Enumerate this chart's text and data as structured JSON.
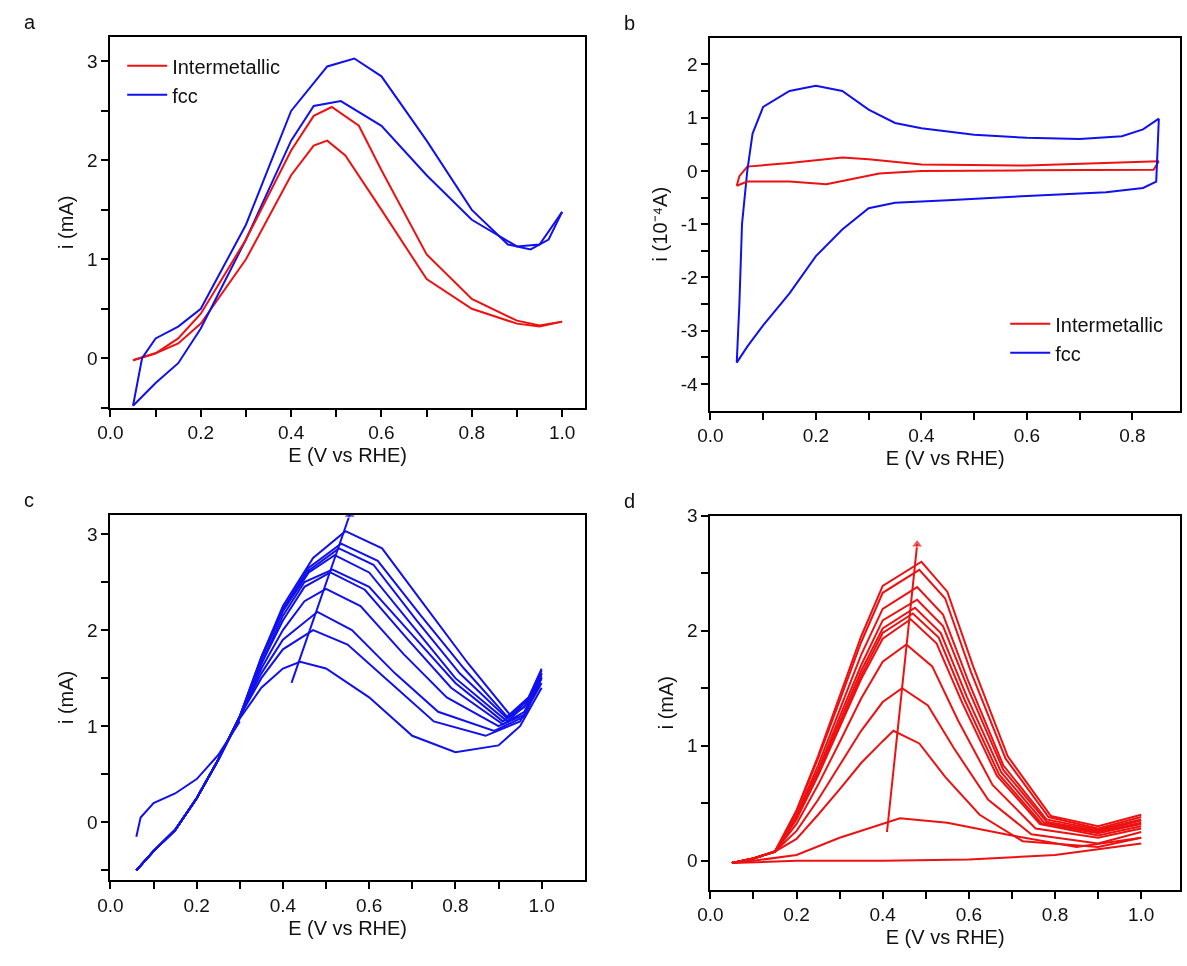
{
  "chart_data": [
    {
      "type": "line",
      "annotations": [
        "a"
      ],
      "xlabel": "E (V vs RHE)",
      "ylabel": "i (mA)",
      "legend": "top left",
      "xlim": [
        0,
        1.05
      ],
      "xticks": [
        {
          "value": 0,
          "label": "0.0"
        },
        {
          "value": 0.1,
          "label": null
        },
        0.2,
        {
          "value": 0.3,
          "label": null
        },
        0.4,
        {
          "value": 0.5,
          "label": null
        },
        0.6,
        {
          "value": 0.7,
          "label": null
        },
        0.8,
        {
          "value": 0.9,
          "label": null
        },
        {
          "value": 1,
          "label": "1.0"
        }
      ],
      "ylim": [
        -0.5,
        3.25
      ],
      "yticks": [
        {
          "value": -0.5,
          "label": null
        },
        0,
        {
          "value": 0.5,
          "label": null
        },
        1,
        {
          "value": 1.5,
          "label": null
        },
        2,
        {
          "value": 2.5,
          "label": null
        },
        3
      ],
      "series": [
        {
          "name": "Intermetallic",
          "color": "#ee1111",
          "x": [
            0.05,
            0.1,
            0.15,
            0.2,
            0.3,
            0.4,
            0.45,
            0.48,
            0.52,
            0.6,
            0.7,
            0.8,
            0.9,
            0.95,
            1.0
          ],
          "values": [
            -0.02,
            0.05,
            0.15,
            0.35,
            1.0,
            1.85,
            2.15,
            2.2,
            2.05,
            1.5,
            0.8,
            0.5,
            0.35,
            0.32,
            0.37
          ]
        },
        {
          "name": "fcc",
          "color": "#1111ee",
          "x": [
            0.05,
            0.1,
            0.15,
            0.2,
            0.3,
            0.4,
            0.45,
            0.51,
            0.6,
            0.7,
            0.8,
            0.9,
            0.95,
            1.0
          ],
          "values": [
            -0.48,
            -0.25,
            -0.05,
            0.3,
            1.2,
            2.2,
            2.55,
            2.6,
            2.35,
            1.85,
            1.4,
            1.13,
            1.15,
            1.48
          ]
        },
        {
          "color": "#ee1111",
          "x": [
            0.05,
            0.1,
            0.15,
            0.2,
            0.3,
            0.4,
            0.45,
            0.49,
            0.55,
            0.6,
            0.7,
            0.8,
            0.9,
            0.95,
            1.0
          ],
          "values": [
            -0.02,
            0.05,
            0.2,
            0.45,
            1.2,
            2.1,
            2.45,
            2.54,
            2.35,
            1.9,
            1.05,
            0.6,
            0.38,
            0.33,
            0.37
          ]
        },
        {
          "color": "#1111ee",
          "x": [
            0.05,
            0.07,
            0.1,
            0.15,
            0.2,
            0.3,
            0.4,
            0.48,
            0.54,
            0.6,
            0.7,
            0.8,
            0.88,
            0.93,
            0.97,
            1.0
          ],
          "values": [
            -0.48,
            0.0,
            0.2,
            0.32,
            0.5,
            1.35,
            2.5,
            2.95,
            3.03,
            2.85,
            2.2,
            1.5,
            1.15,
            1.1,
            1.2,
            1.48
          ]
        }
      ]
    },
    {
      "type": "line",
      "annotations": [
        "b"
      ],
      "xlabel": "E (V vs RHE)",
      "ylabel": "i (10⁻⁴A)",
      "legend": "bottom right",
      "xlim": [
        0,
        0.89
      ],
      "xticks": [
        {
          "value": 0,
          "label": "0.0"
        },
        {
          "value": 0.1,
          "label": null
        },
        0.2,
        {
          "value": 0.3,
          "label": null
        },
        0.4,
        {
          "value": 0.5,
          "label": null
        },
        0.6,
        {
          "value": 0.7,
          "label": null
        },
        0.8
      ],
      "ylim": [
        -4.5,
        2.5
      ],
      "yticks": [
        -4,
        {
          "value": -3.5,
          "label": null
        },
        -3,
        {
          "value": -2.5,
          "label": null
        },
        -2,
        {
          "value": -1.5,
          "label": null
        },
        -1,
        {
          "value": -0.5,
          "label": null
        },
        0,
        {
          "value": 0.5,
          "label": null
        },
        1,
        {
          "value": 1.5,
          "label": null
        },
        2
      ],
      "series": [
        {
          "name": "Intermetallic",
          "color": "#ee1111",
          "x": [
            0.05,
            0.055,
            0.07,
            0.15,
            0.25,
            0.3,
            0.4,
            0.6,
            0.85
          ],
          "values": [
            -0.28,
            -0.1,
            0.08,
            0.15,
            0.25,
            0.22,
            0.12,
            0.1,
            0.18
          ]
        },
        {
          "name": "fcc",
          "color": "#1111ee",
          "x": [
            0.05,
            0.055,
            0.06,
            0.07,
            0.08,
            0.1,
            0.15,
            0.2,
            0.25,
            0.3,
            0.35,
            0.4,
            0.5,
            0.6,
            0.7,
            0.78,
            0.82,
            0.85
          ],
          "values": [
            -3.6,
            -2.5,
            -1.0,
            0.0,
            0.7,
            1.2,
            1.5,
            1.6,
            1.5,
            1.15,
            0.9,
            0.8,
            0.68,
            0.62,
            0.6,
            0.65,
            0.78,
            0.98
          ]
        },
        {
          "color": "#ee1111",
          "x": [
            0.05,
            0.07,
            0.15,
            0.22,
            0.32,
            0.4,
            0.6,
            0.84,
            0.85
          ],
          "values": [
            -0.28,
            -0.2,
            -0.2,
            -0.25,
            -0.05,
            0.0,
            0.01,
            0.02,
            0.18
          ]
        },
        {
          "color": "#1111ee",
          "x": [
            0.05,
            0.07,
            0.1,
            0.15,
            0.2,
            0.25,
            0.3,
            0.35,
            0.45,
            0.6,
            0.75,
            0.82,
            0.845,
            0.85
          ],
          "values": [
            -3.6,
            -3.3,
            -2.9,
            -2.3,
            -1.6,
            -1.1,
            -0.7,
            -0.6,
            -0.55,
            -0.47,
            -0.4,
            -0.32,
            -0.2,
            0.98
          ]
        }
      ]
    },
    {
      "type": "line",
      "annotations": [
        "c"
      ],
      "xlabel": "E (V vs RHE)",
      "ylabel": "i (mA)",
      "xlim": [
        0,
        1.1
      ],
      "xticks": [
        {
          "value": 0,
          "label": "0.0"
        },
        {
          "value": 0.1,
          "label": null
        },
        0.2,
        {
          "value": 0.3,
          "label": null
        },
        0.4,
        {
          "value": 0.5,
          "label": null
        },
        0.6,
        {
          "value": 0.7,
          "label": null
        },
        0.8,
        {
          "value": 0.9,
          "label": null
        },
        {
          "value": 1,
          "label": "1.0"
        }
      ],
      "ylim": [
        -0.6,
        3.2
      ],
      "yticks": [
        {
          "value": -0.5,
          "label": null
        },
        0,
        {
          "value": 0.5,
          "label": null
        },
        1,
        {
          "value": 1.5,
          "label": null
        },
        2,
        {
          "value": 2.5,
          "label": null
        },
        3
      ],
      "series": [
        {
          "color": "#1111ee",
          "x": [
            0.06,
            0.1,
            0.15,
            0.2,
            0.25,
            0.3,
            0.35,
            0.4,
            0.44,
            0.5,
            0.6,
            0.7,
            0.8,
            0.9,
            0.95,
            1.0
          ],
          "values": [
            -0.5,
            -0.3,
            -0.08,
            0.25,
            0.65,
            1.08,
            1.4,
            1.6,
            1.67,
            1.6,
            1.3,
            0.9,
            0.73,
            0.8,
            1.0,
            1.4
          ]
        },
        {
          "color": "#1111ee",
          "x": [
            0.06,
            0.1,
            0.15,
            0.2,
            0.25,
            0.3,
            0.35,
            0.4,
            0.47,
            0.55,
            0.65,
            0.75,
            0.87,
            0.95,
            1.0
          ],
          "values": [
            -0.5,
            -0.3,
            -0.08,
            0.25,
            0.65,
            1.1,
            1.5,
            1.8,
            2.0,
            1.85,
            1.45,
            1.05,
            0.9,
            1.05,
            1.45
          ]
        },
        {
          "color": "#1111ee",
          "x": [
            0.06,
            0.1,
            0.15,
            0.2,
            0.25,
            0.3,
            0.35,
            0.4,
            0.48,
            0.56,
            0.66,
            0.76,
            0.89,
            0.96,
            1.0
          ],
          "values": [
            -0.5,
            -0.3,
            -0.08,
            0.25,
            0.65,
            1.1,
            1.55,
            1.9,
            2.19,
            2.0,
            1.55,
            1.15,
            0.95,
            1.1,
            1.5
          ]
        },
        {
          "color": "#1111ee",
          "x": [
            0.06,
            0.1,
            0.15,
            0.2,
            0.25,
            0.3,
            0.35,
            0.4,
            0.45,
            0.5,
            0.58,
            0.68,
            0.78,
            0.9,
            0.96,
            1.0
          ],
          "values": [
            -0.5,
            -0.3,
            -0.08,
            0.25,
            0.65,
            1.1,
            1.6,
            2.0,
            2.3,
            2.43,
            2.25,
            1.75,
            1.3,
            1.0,
            1.12,
            1.5
          ]
        },
        {
          "color": "#1111ee",
          "x": [
            0.06,
            0.1,
            0.15,
            0.2,
            0.25,
            0.3,
            0.35,
            0.4,
            0.45,
            0.51,
            0.59,
            0.69,
            0.79,
            0.91,
            0.96,
            1.0
          ],
          "values": [
            -0.5,
            -0.3,
            -0.08,
            0.25,
            0.65,
            1.1,
            1.65,
            2.1,
            2.45,
            2.6,
            2.42,
            1.9,
            1.4,
            1.02,
            1.15,
            1.52
          ]
        },
        {
          "color": "#1111ee",
          "x": [
            0.06,
            0.1,
            0.15,
            0.2,
            0.25,
            0.3,
            0.35,
            0.4,
            0.45,
            0.515,
            0.6,
            0.7,
            0.8,
            0.91,
            0.96,
            1.0
          ],
          "values": [
            -0.5,
            -0.3,
            -0.08,
            0.25,
            0.65,
            1.1,
            1.65,
            2.15,
            2.5,
            2.63,
            2.45,
            1.95,
            1.45,
            1.05,
            1.2,
            1.55
          ]
        },
        {
          "color": "#1111ee",
          "x": [
            0.06,
            0.1,
            0.15,
            0.2,
            0.25,
            0.3,
            0.35,
            0.4,
            0.46,
            0.52,
            0.6,
            0.7,
            0.8,
            0.92,
            0.97,
            1.0
          ],
          "values": [
            -0.5,
            -0.3,
            -0.08,
            0.25,
            0.65,
            1.1,
            1.7,
            2.2,
            2.6,
            2.78,
            2.6,
            2.05,
            1.5,
            1.05,
            1.25,
            1.55
          ]
        },
        {
          "color": "#1111ee",
          "x": [
            0.06,
            0.1,
            0.15,
            0.2,
            0.25,
            0.3,
            0.35,
            0.4,
            0.46,
            0.53,
            0.61,
            0.71,
            0.81,
            0.92,
            0.97,
            1.0
          ],
          "values": [
            -0.5,
            -0.3,
            -0.08,
            0.25,
            0.65,
            1.1,
            1.7,
            2.2,
            2.62,
            2.85,
            2.68,
            2.1,
            1.55,
            1.08,
            1.28,
            1.55
          ]
        },
        {
          "color": "#1111ee",
          "x": [
            0.06,
            0.1,
            0.15,
            0.2,
            0.25,
            0.3,
            0.35,
            0.4,
            0.46,
            0.535,
            0.62,
            0.72,
            0.82,
            0.92,
            0.97,
            1.0
          ],
          "values": [
            -0.5,
            -0.3,
            -0.08,
            0.25,
            0.65,
            1.1,
            1.72,
            2.22,
            2.65,
            2.9,
            2.72,
            2.15,
            1.6,
            1.1,
            1.3,
            1.58
          ]
        },
        {
          "color": "#1111ee",
          "x": [
            0.06,
            0.1,
            0.15,
            0.2,
            0.25,
            0.3,
            0.35,
            0.4,
            0.47,
            0.545,
            0.63,
            0.73,
            0.83,
            0.93,
            0.97,
            1.0
          ],
          "values": [
            -0.5,
            -0.3,
            -0.08,
            0.25,
            0.65,
            1.1,
            1.72,
            2.25,
            2.75,
            3.03,
            2.85,
            2.25,
            1.65,
            1.1,
            1.3,
            1.6
          ]
        },
        {
          "color": "#1111ee",
          "x": [
            0.06,
            0.07,
            0.1,
            0.15,
            0.2,
            0.25,
            0.3
          ],
          "values": [
            -0.15,
            0.05,
            0.2,
            0.3,
            0.45,
            0.7,
            1.05
          ]
        },
        {
          "color": "#1111ee",
          "marker": "triangle",
          "x": [
            0.42,
            0.555
          ],
          "values": [
            1.45,
            3.2
          ]
        }
      ]
    },
    {
      "type": "line",
      "annotations": [
        "d"
      ],
      "xlabel": "E (V vs RHE)",
      "ylabel": "i (mA)",
      "xlim": [
        0,
        1.09
      ],
      "xticks": [
        {
          "value": 0,
          "label": "0.0"
        },
        {
          "value": 0.1,
          "label": null
        },
        0.2,
        {
          "value": 0.3,
          "label": null
        },
        0.4,
        {
          "value": 0.5,
          "label": null
        },
        0.6,
        {
          "value": 0.7,
          "label": null
        },
        0.8,
        {
          "value": 0.9,
          "label": null
        },
        {
          "value": 1,
          "label": "1.0"
        }
      ],
      "ylim": [
        -0.25,
        3
      ],
      "yticks": [
        0,
        {
          "value": 0.5,
          "label": null
        },
        1,
        {
          "value": 1.5,
          "label": null
        },
        2,
        {
          "value": 2.5,
          "label": null
        },
        3
      ],
      "series": [
        {
          "color": "#ee1111",
          "x": [
            0.05,
            0.2,
            0.4,
            0.6,
            0.8,
            0.9,
            1.0
          ],
          "values": [
            -0.02,
            0.0,
            0.0,
            0.01,
            0.05,
            0.1,
            0.15
          ]
        },
        {
          "color": "#ee1111",
          "x": [
            0.05,
            0.1,
            0.2,
            0.3,
            0.44,
            0.55,
            0.7,
            0.85,
            1.0
          ],
          "values": [
            -0.02,
            0.0,
            0.05,
            0.2,
            0.37,
            0.33,
            0.22,
            0.12,
            0.2
          ]
        },
        {
          "color": "#ee1111",
          "x": [
            0.05,
            0.1,
            0.15,
            0.2,
            0.25,
            0.3,
            0.35,
            0.4,
            0.425,
            0.485,
            0.545,
            0.625,
            0.725,
            0.9,
            1.0
          ],
          "values": [
            -0.02,
            0.02,
            0.08,
            0.19,
            0.4,
            0.62,
            0.85,
            1.04,
            1.13,
            1.02,
            0.73,
            0.4,
            0.17,
            0.12,
            0.2
          ]
        },
        {
          "color": "#ee1111",
          "x": [
            0.05,
            0.1,
            0.15,
            0.2,
            0.25,
            0.3,
            0.35,
            0.4,
            0.445,
            0.505,
            0.565,
            0.645,
            0.745,
            0.9,
            1.0
          ],
          "values": [
            -0.02,
            0.02,
            0.08,
            0.26,
            0.53,
            0.83,
            1.13,
            1.38,
            1.5,
            1.35,
            0.98,
            0.53,
            0.23,
            0.15,
            0.25
          ]
        },
        {
          "color": "#ee1111",
          "x": [
            0.05,
            0.1,
            0.15,
            0.2,
            0.25,
            0.3,
            0.35,
            0.4,
            0.455,
            0.515,
            0.575,
            0.655,
            0.755,
            0.9,
            1.0
          ],
          "values": [
            -0.02,
            0.02,
            0.08,
            0.32,
            0.66,
            1.03,
            1.41,
            1.73,
            1.88,
            1.69,
            1.22,
            0.66,
            0.28,
            0.2,
            0.28
          ]
        },
        {
          "color": "#ee1111",
          "x": [
            0.05,
            0.1,
            0.15,
            0.2,
            0.25,
            0.3,
            0.35,
            0.4,
            0.465,
            0.525,
            0.585,
            0.665,
            0.765,
            0.9,
            1.0
          ],
          "values": [
            -0.02,
            0.02,
            0.08,
            0.36,
            0.74,
            1.16,
            1.58,
            1.93,
            2.1,
            1.89,
            1.37,
            0.74,
            0.32,
            0.22,
            0.3
          ]
        },
        {
          "color": "#ee1111",
          "x": [
            0.05,
            0.1,
            0.15,
            0.2,
            0.25,
            0.3,
            0.35,
            0.4,
            0.47,
            0.53,
            0.59,
            0.67,
            0.77,
            0.9,
            1.0
          ],
          "values": [
            -0.02,
            0.02,
            0.08,
            0.37,
            0.75,
            1.18,
            1.61,
            1.98,
            2.15,
            1.94,
            1.4,
            0.75,
            0.32,
            0.24,
            0.32
          ]
        },
        {
          "color": "#ee1111",
          "x": [
            0.05,
            0.1,
            0.15,
            0.2,
            0.25,
            0.3,
            0.35,
            0.4,
            0.475,
            0.535,
            0.595,
            0.675,
            0.775,
            0.9,
            1.0
          ],
          "values": [
            -0.02,
            0.02,
            0.08,
            0.37,
            0.77,
            1.21,
            1.65,
            2.02,
            2.2,
            1.98,
            1.43,
            0.77,
            0.33,
            0.25,
            0.33
          ]
        },
        {
          "color": "#ee1111",
          "x": [
            0.05,
            0.1,
            0.15,
            0.2,
            0.25,
            0.3,
            0.35,
            0.4,
            0.48,
            0.54,
            0.6,
            0.68,
            0.78,
            0.9,
            1.0
          ],
          "values": [
            -0.02,
            0.02,
            0.08,
            0.39,
            0.79,
            1.25,
            1.7,
            2.09,
            2.27,
            2.04,
            1.48,
            0.79,
            0.34,
            0.26,
            0.35
          ]
        },
        {
          "color": "#ee1111",
          "x": [
            0.05,
            0.1,
            0.15,
            0.2,
            0.25,
            0.3,
            0.35,
            0.4,
            0.48,
            0.54,
            0.6,
            0.68,
            0.78,
            0.9,
            1.0
          ],
          "values": [
            -0.02,
            0.02,
            0.08,
            0.4,
            0.83,
            1.31,
            1.79,
            2.19,
            2.38,
            2.14,
            1.55,
            0.83,
            0.36,
            0.27,
            0.36
          ]
        },
        {
          "color": "#ee1111",
          "x": [
            0.05,
            0.1,
            0.15,
            0.2,
            0.25,
            0.3,
            0.35,
            0.4,
            0.485,
            0.545,
            0.605,
            0.685,
            0.785,
            0.9,
            1.0
          ],
          "values": [
            -0.02,
            0.02,
            0.08,
            0.43,
            0.89,
            1.39,
            1.9,
            2.33,
            2.53,
            2.28,
            1.64,
            0.89,
            0.38,
            0.28,
            0.38
          ]
        },
        {
          "color": "#ee1111",
          "x": [
            0.05,
            0.1,
            0.15,
            0.2,
            0.25,
            0.3,
            0.35,
            0.4,
            0.49,
            0.55,
            0.61,
            0.69,
            0.79,
            0.9,
            1.0
          ],
          "values": [
            -0.02,
            0.02,
            0.08,
            0.44,
            0.91,
            1.43,
            1.95,
            2.39,
            2.6,
            2.34,
            1.69,
            0.91,
            0.39,
            0.3,
            0.4
          ]
        },
        {
          "color": "#ee1111",
          "marker": "triangle",
          "x": [
            0.41,
            0.48
          ],
          "values": [
            0.25,
            2.75
          ]
        }
      ]
    }
  ]
}
